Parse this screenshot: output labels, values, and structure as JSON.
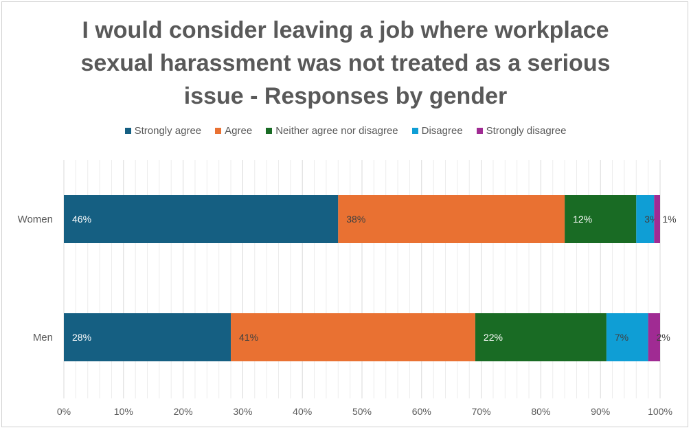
{
  "chart_data": {
    "type": "bar",
    "orientation": "horizontal",
    "stacked": true,
    "title_lines": [
      "I would consider leaving a job where workplace",
      "sexual harassment was not treated as a serious",
      "issue - Responses by gender"
    ],
    "categories": [
      "Women",
      "Men"
    ],
    "series": [
      {
        "name": "Strongly agree",
        "color": "#155f82",
        "values": [
          46,
          28
        ],
        "labels": [
          "46%",
          "28%"
        ]
      },
      {
        "name": "Agree",
        "color": "#e97132",
        "values": [
          38,
          41
        ],
        "labels": [
          "38%",
          "41%"
        ]
      },
      {
        "name": "Neither agree nor disagree",
        "color": "#196b24",
        "values": [
          12,
          22
        ],
        "labels": [
          "12%",
          "22%"
        ]
      },
      {
        "name": "Disagree",
        "color": "#0f9ed5",
        "values": [
          3,
          7
        ],
        "labels": [
          "3%",
          "7%"
        ]
      },
      {
        "name": "Strongly disagree",
        "color": "#a02b93",
        "values": [
          1,
          2
        ],
        "labels": [
          "1%",
          "2%"
        ]
      }
    ],
    "xlim": [
      0,
      100
    ],
    "x_ticks": [
      "0%",
      "10%",
      "20%",
      "30%",
      "40%",
      "50%",
      "60%",
      "70%",
      "80%",
      "90%",
      "100%"
    ],
    "legend_position": "top",
    "grid": true,
    "label_colors": {
      "dark": "#ffffff",
      "light": "#404040"
    }
  }
}
